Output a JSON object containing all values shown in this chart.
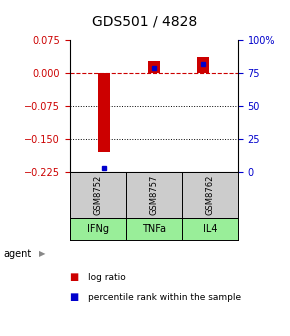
{
  "title": "GDS501 / 4828",
  "samples": [
    "GSM8752",
    "GSM8757",
    "GSM8762"
  ],
  "agents": [
    "IFNg",
    "TNFa",
    "IL4"
  ],
  "log_ratios": [
    -0.178,
    0.028,
    0.038
  ],
  "percentile_ranks": [
    3.5,
    79.0,
    82.0
  ],
  "ylim_left": [
    -0.225,
    0.075
  ],
  "ylim_right": [
    0,
    100
  ],
  "yticks_left": [
    0.075,
    0,
    -0.075,
    -0.15,
    -0.225
  ],
  "yticks_right": [
    100,
    75,
    50,
    25,
    0
  ],
  "ytick_right_labels": [
    "100%",
    "75",
    "50",
    "25",
    "0"
  ],
  "hline_zero": 0,
  "dotted_lines": [
    -0.075,
    -0.15
  ],
  "bar_color": "#cc0000",
  "pct_color": "#0000cc",
  "sample_bg": "#cccccc",
  "agent_bg": "#99ee99",
  "zero_line_color": "#cc0000",
  "title_fontsize": 10,
  "tick_fontsize": 7,
  "bar_width": 0.25,
  "agent_row_label": "agent"
}
